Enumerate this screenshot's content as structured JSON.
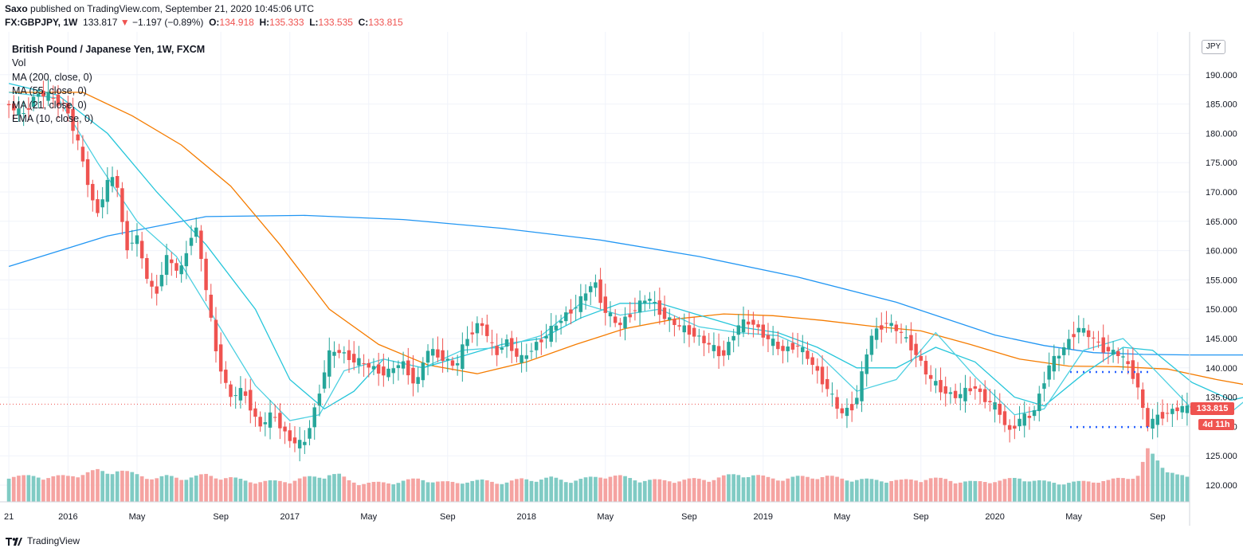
{
  "header": {
    "publisher": "Saxo",
    "published_line": " published on TradingView.com, September 21, 2020 10:45:06 UTC",
    "symbol": "FX:GBPJPY, 1W",
    "last": "133.817",
    "change": "−1.197 (−0.89%)",
    "open_label": "O:",
    "open": "134.918",
    "high_label": "H:",
    "high": "135.333",
    "low_label": "L:",
    "low": "133.535",
    "close_label": "C:",
    "close": "133.815"
  },
  "legend": {
    "title": "British Pound / Japanese Yen, 1W, FXCM",
    "items": [
      "Vol",
      "MA (200, close, 0)",
      "MA (55, close, 0)",
      "MA (21, close, 0)",
      "EMA (10, close, 0)"
    ]
  },
  "badges": {
    "currency": "JPY",
    "last_price": "133.815",
    "countdown": "4d 11h"
  },
  "footer": {
    "brand": "TradingView"
  },
  "colors": {
    "up": "#26a69a",
    "down": "#ef5350",
    "vol_up": "#80cbc4",
    "vol_down": "#f5a3a1",
    "ma200": "#2196f3",
    "ma55": "#f57c00",
    "ma21": "#26c6da",
    "ema10": "#4dd0e1",
    "level": "#2962ff"
  },
  "chart_data": {
    "type": "candlestick",
    "title": "British Pound / Japanese Yen, 1W, FXCM",
    "ylim": [
      117,
      193
    ],
    "y_ticks": [
      "190.000",
      "185.000",
      "180.000",
      "175.000",
      "170.000",
      "165.000",
      "160.000",
      "155.000",
      "150.000",
      "145.000",
      "140.000",
      "135.000",
      "130.000",
      "125.000",
      "120.000"
    ],
    "x_ticks": [
      "21",
      "2016",
      "May",
      "Sep",
      "2017",
      "May",
      "Sep",
      "2018",
      "May",
      "Sep",
      "2019",
      "May",
      "Sep",
      "2020",
      "May",
      "Sep"
    ],
    "x_tick_weeks": [
      0,
      12,
      26,
      43,
      57,
      73,
      89,
      105,
      121,
      138,
      153,
      169,
      185,
      200,
      216,
      233
    ],
    "weeks": 240,
    "close_path": [
      [
        0,
        185
      ],
      [
        3,
        183
      ],
      [
        6,
        187
      ],
      [
        9,
        186
      ],
      [
        12,
        184.5
      ],
      [
        15,
        176
      ],
      [
        18,
        166
      ],
      [
        20,
        171
      ],
      [
        22,
        173
      ],
      [
        24,
        160
      ],
      [
        26,
        163
      ],
      [
        28,
        156
      ],
      [
        30,
        152
      ],
      [
        32,
        159
      ],
      [
        35,
        156
      ],
      [
        38,
        165
      ],
      [
        40,
        155
      ],
      [
        42,
        144
      ],
      [
        45,
        135
      ],
      [
        48,
        136
      ],
      [
        51,
        130
      ],
      [
        54,
        132
      ],
      [
        57,
        128
      ],
      [
        60,
        126.5
      ],
      [
        63,
        135
      ],
      [
        65,
        142
      ],
      [
        67,
        143
      ],
      [
        69,
        142
      ],
      [
        71,
        141
      ],
      [
        74,
        140
      ],
      [
        77,
        139
      ],
      [
        80,
        141
      ],
      [
        83,
        137
      ],
      [
        85,
        143
      ],
      [
        88,
        142
      ],
      [
        91,
        140
      ],
      [
        93,
        145
      ],
      [
        96,
        148
      ],
      [
        99,
        142
      ],
      [
        101,
        145
      ],
      [
        104,
        141
      ],
      [
        107,
        144
      ],
      [
        110,
        146
      ],
      [
        113,
        149
      ],
      [
        116,
        151
      ],
      [
        119,
        155
      ],
      [
        121,
        150
      ],
      [
        124,
        147
      ],
      [
        127,
        150
      ],
      [
        130,
        152
      ],
      [
        133,
        149
      ],
      [
        136,
        147
      ],
      [
        139,
        146
      ],
      [
        142,
        144
      ],
      [
        145,
        142
      ],
      [
        148,
        147
      ],
      [
        151,
        148
      ],
      [
        154,
        145
      ],
      [
        157,
        143
      ],
      [
        160,
        144
      ],
      [
        163,
        141
      ],
      [
        166,
        137
      ],
      [
        169,
        132
      ],
      [
        172,
        134
      ],
      [
        175,
        145
      ],
      [
        178,
        148
      ],
      [
        181,
        146
      ],
      [
        184,
        143
      ],
      [
        187,
        138
      ],
      [
        190,
        136
      ],
      [
        193,
        135
      ],
      [
        196,
        137
      ],
      [
        199,
        134
      ],
      [
        201,
        133
      ],
      [
        203,
        129
      ],
      [
        205,
        131
      ],
      [
        208,
        132
      ],
      [
        211,
        140
      ],
      [
        214,
        143
      ],
      [
        217,
        147
      ],
      [
        220,
        145
      ],
      [
        223,
        143
      ],
      [
        226,
        142
      ],
      [
        229,
        138
      ],
      [
        231,
        130
      ],
      [
        234,
        132
      ],
      [
        237,
        133
      ],
      [
        240,
        133
      ],
      [
        243,
        131
      ],
      [
        246,
        134
      ],
      [
        249,
        136
      ],
      [
        252,
        138
      ],
      [
        255,
        140
      ],
      [
        258,
        136
      ],
      [
        260,
        139
      ],
      [
        263,
        141
      ],
      [
        266,
        142
      ],
      [
        269,
        140
      ],
      [
        272,
        136
      ],
      [
        275,
        137
      ],
      [
        277,
        133.8
      ]
    ],
    "series": [
      {
        "name": "MA (200, close, 0)",
        "points": [
          [
            0,
            157.3
          ],
          [
            20,
            162.5
          ],
          [
            40,
            165.8
          ],
          [
            60,
            166
          ],
          [
            80,
            165.3
          ],
          [
            100,
            163.8
          ],
          [
            120,
            161.8
          ],
          [
            140,
            159
          ],
          [
            160,
            155.5
          ],
          [
            180,
            151.2
          ],
          [
            200,
            145.6
          ],
          [
            210,
            143.8
          ],
          [
            220,
            142.6
          ],
          [
            230,
            142.3
          ],
          [
            240,
            142.2
          ],
          [
            250,
            142.2
          ],
          [
            260,
            142.4
          ],
          [
            270,
            142.4
          ]
        ]
      },
      {
        "name": "MA (55, close, 0)",
        "points": [
          [
            0,
            187
          ],
          [
            15,
            187
          ],
          [
            25,
            183
          ],
          [
            35,
            178
          ],
          [
            45,
            171
          ],
          [
            55,
            161
          ],
          [
            65,
            150
          ],
          [
            75,
            144
          ],
          [
            85,
            140.5
          ],
          [
            95,
            139
          ],
          [
            105,
            141
          ],
          [
            115,
            144
          ],
          [
            125,
            146.7
          ],
          [
            135,
            148.3
          ],
          [
            145,
            149.2
          ],
          [
            155,
            148.9
          ],
          [
            165,
            148.1
          ],
          [
            175,
            147.1
          ],
          [
            185,
            146.3
          ],
          [
            195,
            144
          ],
          [
            205,
            141.5
          ],
          [
            215,
            140.3
          ],
          [
            225,
            140.2
          ],
          [
            235,
            139.8
          ],
          [
            245,
            138
          ],
          [
            255,
            136.5
          ],
          [
            265,
            136.3
          ],
          [
            270,
            137.4
          ],
          [
            275,
            137.3
          ]
        ]
      },
      {
        "name": "MA (21, close, 0)",
        "points": [
          [
            0,
            188.5
          ],
          [
            10,
            186.5
          ],
          [
            20,
            180
          ],
          [
            30,
            170
          ],
          [
            40,
            161
          ],
          [
            50,
            150
          ],
          [
            57,
            138
          ],
          [
            64,
            133
          ],
          [
            70,
            136
          ],
          [
            76,
            141.5
          ],
          [
            84,
            140
          ],
          [
            92,
            142
          ],
          [
            100,
            144
          ],
          [
            108,
            145
          ],
          [
            116,
            148.5
          ],
          [
            124,
            151
          ],
          [
            132,
            151
          ],
          [
            140,
            149
          ],
          [
            148,
            147
          ],
          [
            156,
            146
          ],
          [
            164,
            143.5
          ],
          [
            172,
            140
          ],
          [
            180,
            140
          ],
          [
            188,
            143.5
          ],
          [
            196,
            141
          ],
          [
            204,
            135
          ],
          [
            210,
            133.5
          ],
          [
            218,
            139
          ],
          [
            226,
            143.5
          ],
          [
            232,
            143
          ],
          [
            240,
            137.5
          ],
          [
            248,
            134.5
          ],
          [
            256,
            136
          ],
          [
            264,
            138
          ],
          [
            270,
            136
          ],
          [
            275,
            135.5
          ]
        ]
      },
      {
        "name": "EMA (10, close, 0)",
        "points": [
          [
            0,
            187
          ],
          [
            10,
            186
          ],
          [
            18,
            175
          ],
          [
            26,
            165
          ],
          [
            34,
            159
          ],
          [
            42,
            148
          ],
          [
            50,
            137
          ],
          [
            57,
            131
          ],
          [
            63,
            132
          ],
          [
            68,
            139.5
          ],
          [
            76,
            141.5
          ],
          [
            84,
            140
          ],
          [
            92,
            143
          ],
          [
            100,
            143.5
          ],
          [
            108,
            145.5
          ],
          [
            116,
            151
          ],
          [
            124,
            149
          ],
          [
            132,
            150
          ],
          [
            140,
            147
          ],
          [
            148,
            146
          ],
          [
            156,
            145.5
          ],
          [
            164,
            142.5
          ],
          [
            172,
            136
          ],
          [
            180,
            138
          ],
          [
            188,
            146
          ],
          [
            196,
            138.5
          ],
          [
            204,
            132
          ],
          [
            210,
            133
          ],
          [
            218,
            143
          ],
          [
            226,
            145
          ],
          [
            232,
            140
          ],
          [
            240,
            133
          ],
          [
            248,
            132.5
          ],
          [
            256,
            138
          ],
          [
            264,
            139
          ],
          [
            270,
            138
          ],
          [
            275,
            134.5
          ]
        ]
      }
    ],
    "levels": [
      {
        "value": 139.3,
        "from_week": 261,
        "to_week": 279
      },
      {
        "value": 129.9,
        "from_week": 247,
        "to_week": 279
      }
    ],
    "volume_profile": [
      [
        0,
        0.38
      ],
      [
        3,
        0.36
      ],
      [
        6,
        0.36
      ],
      [
        9,
        0.36
      ],
      [
        12,
        0.36
      ],
      [
        15,
        0.41
      ],
      [
        18,
        0.44
      ],
      [
        20,
        0.41
      ],
      [
        22,
        0.47
      ],
      [
        24,
        0.42
      ],
      [
        26,
        0.38
      ],
      [
        28,
        0.36
      ],
      [
        30,
        0.34
      ],
      [
        32,
        0.36
      ],
      [
        35,
        0.34
      ],
      [
        38,
        0.36
      ],
      [
        40,
        0.38
      ],
      [
        42,
        0.36
      ],
      [
        45,
        0.34
      ],
      [
        48,
        0.3
      ],
      [
        51,
        0.29
      ],
      [
        54,
        0.29
      ],
      [
        57,
        0.3
      ],
      [
        60,
        0.34
      ],
      [
        63,
        0.36
      ],
      [
        65,
        0.4
      ],
      [
        67,
        0.38
      ],
      [
        69,
        0.3
      ],
      [
        71,
        0.27
      ],
      [
        74,
        0.27
      ],
      [
        77,
        0.27
      ],
      [
        80,
        0.3
      ],
      [
        83,
        0.32
      ],
      [
        85,
        0.31
      ],
      [
        88,
        0.28
      ],
      [
        91,
        0.27
      ],
      [
        93,
        0.3
      ],
      [
        96,
        0.3
      ],
      [
        99,
        0.28
      ],
      [
        101,
        0.28
      ],
      [
        104,
        0.32
      ],
      [
        107,
        0.32
      ],
      [
        110,
        0.34
      ],
      [
        113,
        0.3
      ],
      [
        116,
        0.32
      ],
      [
        119,
        0.35
      ],
      [
        121,
        0.38
      ],
      [
        124,
        0.36
      ],
      [
        127,
        0.32
      ],
      [
        130,
        0.31
      ],
      [
        133,
        0.3
      ],
      [
        136,
        0.31
      ],
      [
        139,
        0.32
      ],
      [
        142,
        0.32
      ],
      [
        145,
        0.36
      ],
      [
        148,
        0.39
      ],
      [
        151,
        0.38
      ],
      [
        154,
        0.34
      ],
      [
        157,
        0.33
      ],
      [
        160,
        0.35
      ],
      [
        163,
        0.36
      ],
      [
        166,
        0.36
      ],
      [
        169,
        0.33
      ],
      [
        172,
        0.32
      ],
      [
        175,
        0.31
      ],
      [
        178,
        0.31
      ],
      [
        181,
        0.3
      ],
      [
        184,
        0.32
      ],
      [
        187,
        0.33
      ],
      [
        190,
        0.32
      ],
      [
        193,
        0.29
      ],
      [
        196,
        0.28
      ],
      [
        199,
        0.3
      ],
      [
        201,
        0.3
      ],
      [
        203,
        0.32
      ],
      [
        205,
        0.34
      ],
      [
        208,
        0.3
      ],
      [
        211,
        0.28
      ],
      [
        214,
        0.27
      ],
      [
        217,
        0.28
      ],
      [
        220,
        0.3
      ],
      [
        223,
        0.3
      ],
      [
        226,
        0.34
      ],
      [
        229,
        0.38
      ],
      [
        231,
        0.72
      ],
      [
        234,
        0.52
      ],
      [
        237,
        0.38
      ],
      [
        240,
        0.32
      ],
      [
        243,
        0.3
      ],
      [
        246,
        0.32
      ],
      [
        249,
        0.34
      ],
      [
        252,
        0.33
      ],
      [
        255,
        0.33
      ],
      [
        258,
        0.32
      ],
      [
        260,
        0.34
      ],
      [
        263,
        0.36
      ],
      [
        266,
        0.36
      ],
      [
        269,
        0.35
      ],
      [
        272,
        0.32
      ],
      [
        275,
        0.28
      ],
      [
        277,
        0.05
      ]
    ]
  }
}
